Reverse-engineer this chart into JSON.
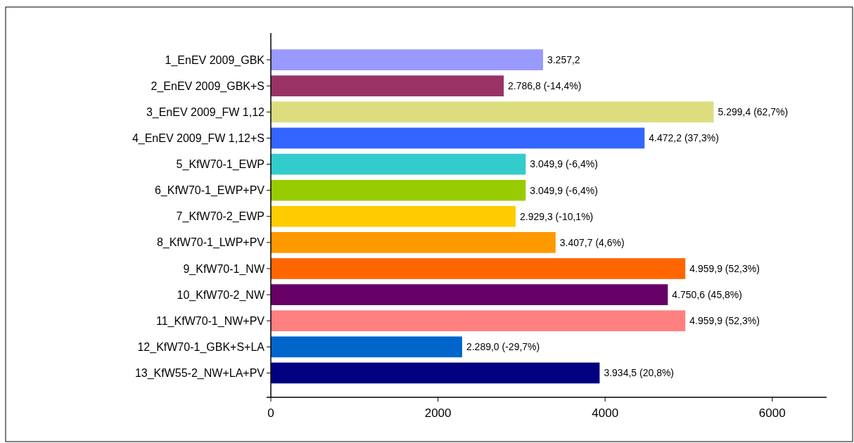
{
  "chart_data": {
    "type": "bar",
    "orientation": "horizontal",
    "categories": [
      "1_EnEV 2009_GBK",
      "2_EnEV 2009_GBK+S",
      "3_EnEV 2009_FW 1,12",
      "4_EnEV 2009_FW 1,12+S",
      "5_KfW70-1_EWP",
      "6_KfW70-1_EWP+PV",
      "7_KfW70-2_EWP",
      "8_KfW70-1_LWP+PV",
      "9_KfW70-1_NW",
      "10_KfW70-2_NW",
      "11_KfW70-1_NW+PV",
      "12_KfW70-1_GBK+S+LA",
      "13_KfW55-2_NW+LA+PV"
    ],
    "values": [
      3257.2,
      2786.8,
      5299.4,
      4472.2,
      3049.9,
      3049.9,
      2929.3,
      3407.7,
      4959.9,
      4750.6,
      4959.9,
      2289.0,
      3934.5
    ],
    "colors": [
      "#9999ff",
      "#993366",
      "#dddd80",
      "#3366ff",
      "#33cccc",
      "#99cc00",
      "#ffcc00",
      "#ff9900",
      "#ff6600",
      "#660066",
      "#ff8080",
      "#0066cc",
      "#000080"
    ],
    "value_labels": [
      "3.257,2",
      "2.786,8 (-14,4%)",
      "5.299,4 (62,7%)",
      "4.472,2 (37,3%)",
      "3.049,9 (-6,4%)",
      "3.049,9 (-6,4%)",
      "2.929,3 (-10,1%)",
      "3.407,7 (4,6%)",
      "4.959,9 (52,3%)",
      "4.750,6 (45,8%)",
      "4.959,9 (52,3%)",
      "2.289,0 (-29,7%)",
      "3.934,5 (20,8%)"
    ],
    "xlim": [
      0,
      6650
    ],
    "xticks": [
      0,
      2000,
      4000,
      6000
    ]
  }
}
